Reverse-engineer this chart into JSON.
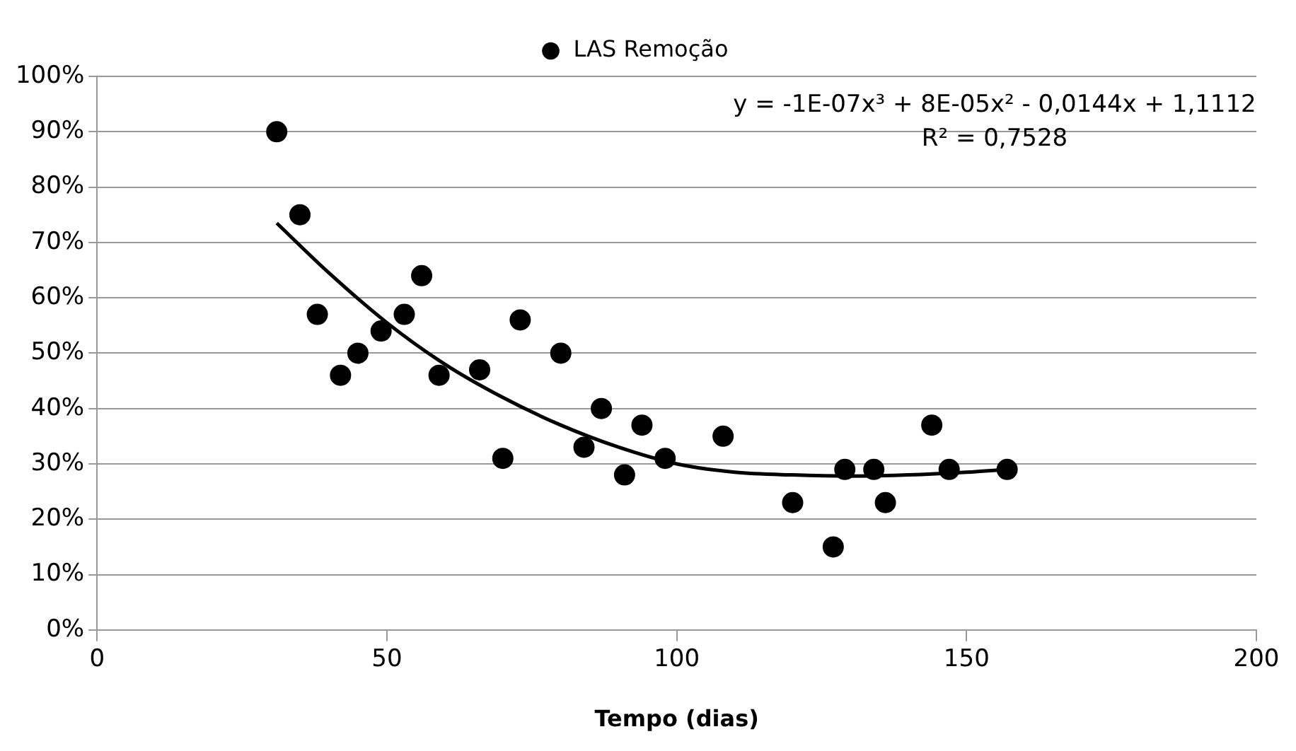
{
  "chart_data": {
    "type": "scatter",
    "xlabel": "Tempo (dias)",
    "annotations": [
      "y = -1E-07x³ + 8E-05x² - 0,0144x + 1,1112",
      "R² = 0,7528"
    ],
    "xlim": [
      0,
      200
    ],
    "xticks": [
      0,
      50,
      100,
      150,
      200
    ],
    "ylim": [
      0,
      1
    ],
    "yticks": [
      {
        "value": 0,
        "label": "0%"
      },
      {
        "value": 0.1,
        "label": "10%"
      },
      {
        "value": 0.2,
        "label": "20%"
      },
      {
        "value": 0.3,
        "label": "30%"
      },
      {
        "value": 0.4,
        "label": "40%"
      },
      {
        "value": 0.5,
        "label": "50%"
      },
      {
        "value": 0.6,
        "label": "60%"
      },
      {
        "value": 0.7,
        "label": "70%"
      },
      {
        "value": 0.8,
        "label": "80%"
      },
      {
        "value": 0.9,
        "label": "90%"
      },
      {
        "value": 1,
        "label": "100%"
      }
    ],
    "grid": "y",
    "legend": "top",
    "marker": "circle",
    "series": [
      {
        "name": "LAS Remoção",
        "color": "#000000",
        "x": [
          31,
          35,
          38,
          42,
          45,
          49,
          53,
          56,
          59,
          66,
          70,
          73,
          80,
          84,
          87,
          91,
          94,
          98,
          108,
          120,
          127,
          129,
          134,
          136,
          144,
          147,
          157
        ],
        "values": [
          0.9,
          0.75,
          0.57,
          0.46,
          0.5,
          0.54,
          0.57,
          0.64,
          0.46,
          0.47,
          0.31,
          0.56,
          0.5,
          0.33,
          0.4,
          0.28,
          0.37,
          0.31,
          0.35,
          0.23,
          0.15,
          0.29,
          0.29,
          0.23,
          0.37,
          0.29,
          0.29
        ]
      },
      {
        "type": "line",
        "color": "#000000",
        "marker": "none",
        "x": [
          31,
          40,
          50,
          60,
          70,
          80,
          90,
          100,
          110,
          120,
          130,
          140,
          150,
          157
        ],
        "values": [
          0.735,
          0.645,
          0.555,
          0.48,
          0.42,
          0.37,
          0.33,
          0.3,
          0.285,
          0.28,
          0.278,
          0.28,
          0.285,
          0.29
        ]
      }
    ]
  }
}
